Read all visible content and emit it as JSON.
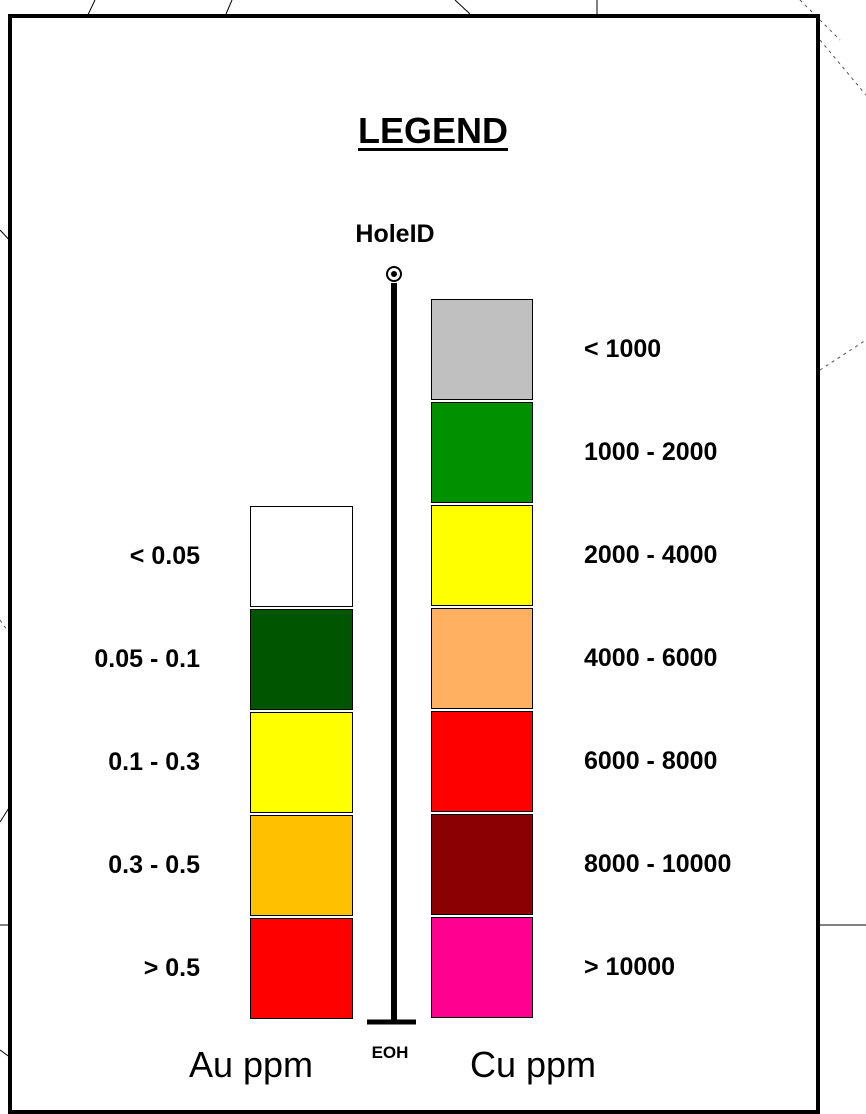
{
  "legend": {
    "title": "LEGEND",
    "hole_label": "HoleID",
    "eoh_label": "EOH",
    "au": {
      "axis_label": "Au ppm",
      "items": [
        {
          "label": "< 0.05",
          "color": "#ffffff"
        },
        {
          "label": "0.05 - 0.1",
          "color": "#005500"
        },
        {
          "label": "0.1 - 0.3",
          "color": "#ffff00"
        },
        {
          "label": "0.3 - 0.5",
          "color": "#ffc000"
        },
        {
          "label": "> 0.5",
          "color": "#ff0000"
        }
      ]
    },
    "cu": {
      "axis_label": "Cu ppm",
      "items": [
        {
          "label": "< 1000",
          "color": "#c0c0c0"
        },
        {
          "label": "1000 - 2000",
          "color": "#009000"
        },
        {
          "label": "2000 - 4000",
          "color": "#ffff00"
        },
        {
          "label": "4000 - 6000",
          "color": "#ffb060"
        },
        {
          "label": "6000 - 8000",
          "color": "#ff0000"
        },
        {
          "label": "8000 - 10000",
          "color": "#8b0000"
        },
        {
          "label": "> 10000",
          "color": "#ff0090"
        }
      ]
    }
  }
}
